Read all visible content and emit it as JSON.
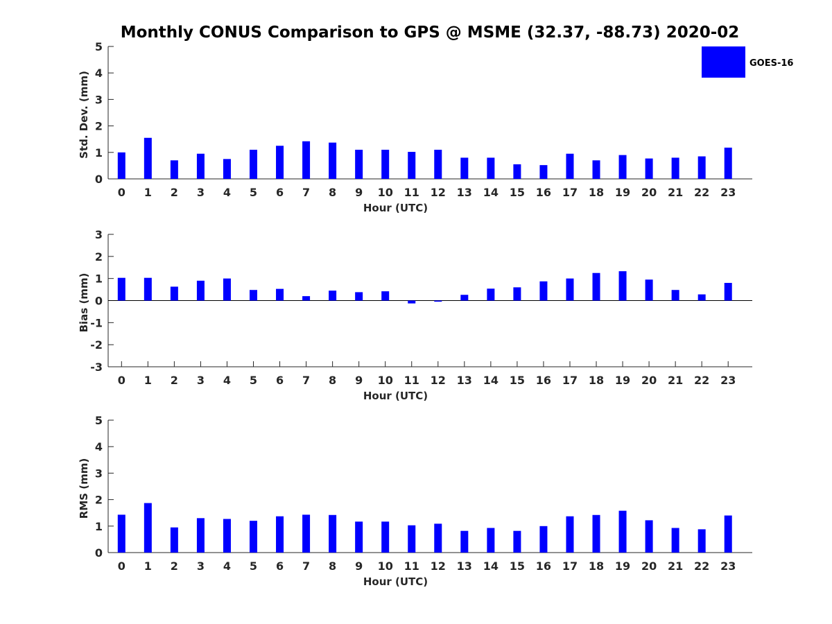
{
  "title": "Monthly CONUS Comparison to GPS @ MSME (32.37, -88.73) 2020-02",
  "legend": {
    "label": "GOES-16",
    "color": "#0000ff",
    "placement": "top-right"
  },
  "chart_data": [
    {
      "type": "bar",
      "name": "std-dev",
      "xlabel": "Hour (UTC)",
      "ylabel": "Std. Dev. (mm)",
      "ylim": [
        0,
        5
      ],
      "yticks": [
        0,
        1,
        2,
        3,
        4,
        5
      ],
      "categories": [
        "0",
        "1",
        "2",
        "3",
        "4",
        "5",
        "6",
        "7",
        "8",
        "9",
        "10",
        "11",
        "12",
        "13",
        "14",
        "15",
        "16",
        "17",
        "18",
        "19",
        "20",
        "21",
        "22",
        "23"
      ],
      "series": [
        {
          "name": "GOES-16",
          "values": [
            1.0,
            1.55,
            0.7,
            0.95,
            0.75,
            1.1,
            1.25,
            1.42,
            1.37,
            1.1,
            1.1,
            1.02,
            1.1,
            0.8,
            0.8,
            0.55,
            0.52,
            0.95,
            0.7,
            0.9,
            0.77,
            0.8,
            0.85,
            1.18
          ]
        }
      ]
    },
    {
      "type": "bar",
      "name": "bias",
      "xlabel": "Hour (UTC)",
      "ylabel": "Bias (mm)",
      "ylim": [
        -3,
        3
      ],
      "yticks": [
        -3,
        -2,
        -1,
        0,
        1,
        2,
        3
      ],
      "zero_line": true,
      "categories": [
        "0",
        "1",
        "2",
        "3",
        "4",
        "5",
        "6",
        "7",
        "8",
        "9",
        "10",
        "11",
        "12",
        "13",
        "14",
        "15",
        "16",
        "17",
        "18",
        "19",
        "20",
        "21",
        "22",
        "23"
      ],
      "series": [
        {
          "name": "GOES-16",
          "values": [
            1.03,
            1.03,
            0.63,
            0.9,
            1.0,
            0.48,
            0.53,
            0.2,
            0.45,
            0.38,
            0.42,
            -0.13,
            -0.05,
            0.26,
            0.54,
            0.6,
            0.87,
            1.0,
            1.25,
            1.33,
            0.95,
            0.48,
            0.28,
            0.8
          ]
        }
      ]
    },
    {
      "type": "bar",
      "name": "rms",
      "xlabel": "Hour (UTC)",
      "ylabel": "RMS (mm)",
      "ylim": [
        0,
        5
      ],
      "yticks": [
        0,
        1,
        2,
        3,
        4,
        5
      ],
      "categories": [
        "0",
        "1",
        "2",
        "3",
        "4",
        "5",
        "6",
        "7",
        "8",
        "9",
        "10",
        "11",
        "12",
        "13",
        "14",
        "15",
        "16",
        "17",
        "18",
        "19",
        "20",
        "21",
        "22",
        "23"
      ],
      "series": [
        {
          "name": "GOES-16",
          "values": [
            1.43,
            1.87,
            0.95,
            1.3,
            1.27,
            1.2,
            1.37,
            1.43,
            1.42,
            1.17,
            1.17,
            1.03,
            1.09,
            0.82,
            0.93,
            0.82,
            1.0,
            1.37,
            1.42,
            1.58,
            1.22,
            0.93,
            0.88,
            1.4
          ]
        }
      ]
    }
  ]
}
